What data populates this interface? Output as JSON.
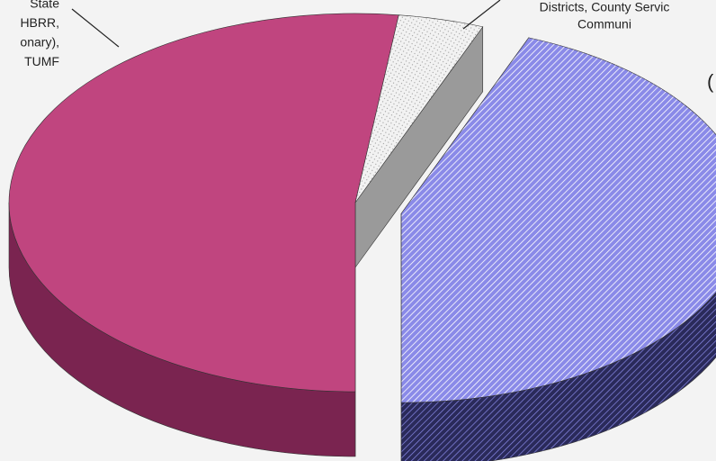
{
  "chart_data": {
    "type": "pie",
    "slices": [
      {
        "value": 52,
        "color": "#c0457f",
        "side_color": "#7a2450",
        "pattern": "none"
      },
      {
        "value": 4,
        "color": "#f2f2f2",
        "side_color": "#9a9a9a",
        "pattern": "dots"
      },
      {
        "value": 44,
        "color": "#8a8ae8",
        "side_color": "#2a2a5a",
        "pattern": "stripes",
        "exploded": true
      }
    ],
    "labels": [
      {
        "lines": [
          "State",
          "HBRR,",
          "onary),",
          "TUMF"
        ]
      },
      {
        "lines": [
          "Districts, County Servic",
          "Communi"
        ]
      },
      {
        "lines": [
          "("
        ]
      }
    ]
  }
}
